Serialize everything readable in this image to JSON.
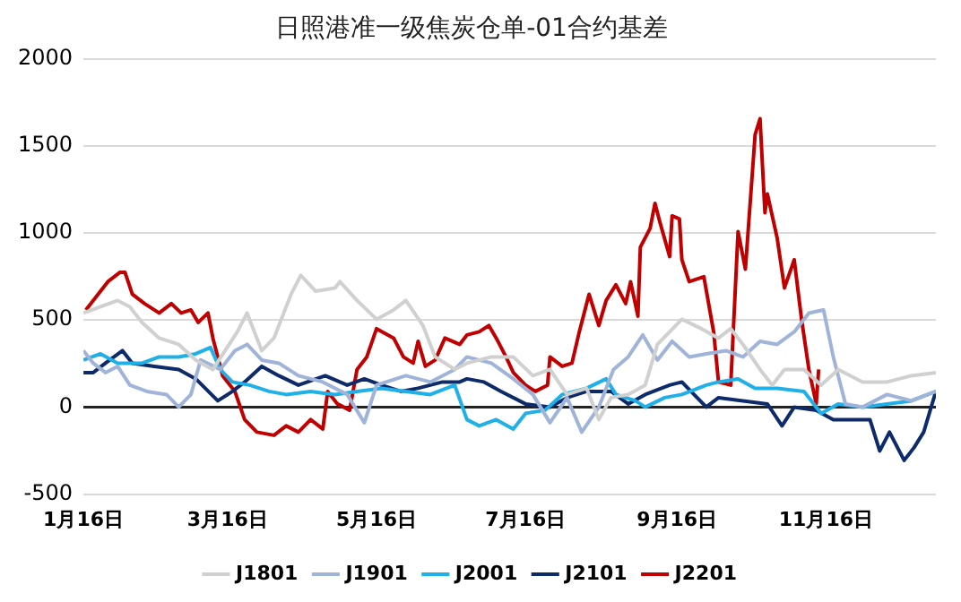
{
  "chart_data": {
    "type": "line",
    "title": "日照港准一级焦炭仓单-01合约基差",
    "xlim": [
      "--01-16",
      "--12-31"
    ],
    "xticks": [
      {
        "value": "--01-16",
        "label": "1月16日"
      },
      {
        "value": "--03-16",
        "label": "3月16日"
      },
      {
        "value": "--05-16",
        "label": "5月16日"
      },
      {
        "value": "--07-16",
        "label": "7月16日"
      },
      {
        "value": "--09-16",
        "label": "9月16日"
      },
      {
        "value": "--11-16",
        "label": "11月16日"
      }
    ],
    "ylim": [
      -500,
      2000
    ],
    "yticks": [
      -500,
      0,
      500,
      1000,
      1500,
      2000
    ],
    "grid": "y",
    "legend": "bottom",
    "marker": "none",
    "line_style": "solid",
    "series": [
      {
        "name": "J1801",
        "color": "#d0d0d0",
        "x": [
          "--01-16",
          "--01-23",
          "--01-30",
          "--02-04",
          "--02-09",
          "--02-16",
          "--02-24",
          "--03-03",
          "--03-10",
          "--03-15",
          "--03-20",
          "--03-24",
          "--03-30",
          "--04-04",
          "--04-11",
          "--04-15",
          "--04-21",
          "--04-29",
          "--05-01",
          "--05-08",
          "--05-16",
          "--05-23",
          "--05-28",
          "--06-04",
          "--06-09",
          "--06-17",
          "--06-22",
          "--07-02",
          "--07-11",
          "--07-19",
          "--07-26",
          "--08-02",
          "--08-10",
          "--08-15",
          "--08-20",
          "--08-27",
          "--09-03",
          "--09-08",
          "--09-13",
          "--09-18",
          "--09-26",
          "--10-03",
          "--10-08",
          "--10-13",
          "--10-20",
          "--10-25",
          "--10-30",
          "--11-07",
          "--11-14",
          "--11-21",
          "--12-01",
          "--12-11",
          "--12-21",
          "--12-31"
        ],
        "values": [
          540,
          576,
          612,
          576,
          486,
          396,
          360,
          270,
          216,
          324,
          432,
          540,
          324,
          396,
          648,
          756,
          666,
          684,
          720,
          612,
          504,
          558,
          612,
          468,
          288,
          216,
          252,
          288,
          288,
          180,
          216,
          72,
          108,
          -72,
          54,
          72,
          126,
          360,
          432,
          504,
          450,
          396,
          450,
          360,
          216,
          126,
          216,
          216,
          126,
          216,
          144,
          144,
          180,
          198
        ]
      },
      {
        "name": "J1901",
        "color": "#9fb4d8",
        "x": [
          "--01-16",
          "--01-20",
          "--01-25",
          "--01-30",
          "--02-04",
          "--02-11",
          "--02-19",
          "--02-24",
          "--03-01",
          "--03-05",
          "--03-13",
          "--03-19",
          "--03-24",
          "--03-30",
          "--04-06",
          "--04-14",
          "--04-24",
          "--05-04",
          "--05-11",
          "--05-16",
          "--05-28",
          "--06-07",
          "--06-17",
          "--06-22",
          "--07-02",
          "--07-11",
          "--07-19",
          "--07-26",
          "--08-02",
          "--08-08",
          "--08-15",
          "--08-21",
          "--08-27",
          "--09-02",
          "--09-08",
          "--09-14",
          "--09-21",
          "--09-28",
          "--10-06",
          "--10-13",
          "--10-20",
          "--10-27",
          "--11-03",
          "--11-09",
          "--11-15",
          "--11-19",
          "--11-24",
          "--12-01",
          "--12-11",
          "--12-21",
          "--12-31"
        ],
        "values": [
          324,
          252,
          198,
          234,
          126,
          90,
          72,
          0,
          72,
          270,
          216,
          324,
          360,
          270,
          252,
          180,
          144,
          72,
          -90,
          126,
          180,
          144,
          216,
          288,
          252,
          162,
          72,
          -90,
          54,
          -144,
          0,
          216,
          288,
          414,
          270,
          378,
          288,
          306,
          324,
          288,
          378,
          360,
          432,
          540,
          558,
          288,
          18,
          0,
          72,
          36,
          90
        ]
      },
      {
        "name": "J2001",
        "color": "#1fb0e8",
        "x": [
          "--01-16",
          "--01-23",
          "--01-30",
          "--02-09",
          "--02-16",
          "--02-24",
          "--03-03",
          "--03-09",
          "--03-13",
          "--03-18",
          "--03-25",
          "--04-02",
          "--04-09",
          "--04-19",
          "--04-29",
          "--05-08",
          "--05-18",
          "--05-28",
          "--06-07",
          "--06-17",
          "--06-22",
          "--06-27",
          "--07-04",
          "--07-11",
          "--07-16",
          "--07-24",
          "--07-31",
          "--08-10",
          "--08-18",
          "--08-22",
          "--08-30",
          "--09-03",
          "--09-11",
          "--09-18",
          "--09-28",
          "--10-03",
          "--10-11",
          "--10-18",
          "--10-27",
          "--11-07",
          "--11-14",
          "--11-21",
          "--12-01",
          "--12-11",
          "--12-21",
          "--12-31"
        ],
        "values": [
          270,
          306,
          252,
          252,
          288,
          288,
          306,
          342,
          216,
          144,
          126,
          90,
          72,
          90,
          72,
          90,
          108,
          90,
          72,
          126,
          -72,
          -108,
          -72,
          -126,
          -36,
          -18,
          72,
          108,
          162,
          72,
          36,
          0,
          54,
          72,
          126,
          144,
          162,
          108,
          108,
          90,
          -36,
          18,
          0,
          18,
          36,
          90
        ]
      },
      {
        "name": "J2101",
        "color": "#0d2a6b",
        "x": [
          "--01-16",
          "--01-20",
          "--01-25",
          "--02-01",
          "--02-05",
          "--02-14",
          "--02-24",
          "--03-03",
          "--03-12",
          "--03-18",
          "--03-23",
          "--03-30",
          "--04-06",
          "--04-14",
          "--04-25",
          "--05-04",
          "--05-11",
          "--05-18",
          "--05-26",
          "--06-02",
          "--06-12",
          "--06-19",
          "--06-22",
          "--06-29",
          "--07-06",
          "--07-16",
          "--07-26",
          "--08-02",
          "--08-10",
          "--08-20",
          "--08-27",
          "--09-03",
          "--09-13",
          "--09-18",
          "--09-28",
          "--10-03",
          "--10-13",
          "--10-23",
          "--10-29",
          "--11-03",
          "--11-12",
          "--11-19",
          "--11-26",
          "--12-04",
          "--12-08",
          "--12-12",
          "--12-18",
          "--12-22",
          "--12-26",
          "--12-31"
        ],
        "values": [
          198,
          198,
          252,
          324,
          252,
          234,
          216,
          162,
          36,
          90,
          144,
          234,
          180,
          126,
          180,
          126,
          162,
          126,
          90,
          108,
          144,
          144,
          162,
          144,
          90,
          18,
          0,
          54,
          90,
          90,
          18,
          72,
          126,
          144,
          0,
          54,
          36,
          18,
          -108,
          0,
          -18,
          -72,
          -72,
          -72,
          -252,
          -144,
          -306,
          -234,
          -144,
          90
        ]
      },
      {
        "name": "J2201",
        "color": "#c00000",
        "x": [
          "--01-17",
          "--01-20",
          "--01-26",
          "--01-31",
          "--02-02",
          "--02-05",
          "--02-10",
          "--02-16",
          "--02-21",
          "--02-25",
          "--03-01",
          "--03-04",
          "--03-08",
          "--03-10",
          "--03-14",
          "--03-19",
          "--03-23",
          "--03-28",
          "--04-04",
          "--04-09",
          "--04-14",
          "--04-19",
          "--04-24",
          "--04-26",
          "--04-30",
          "--05-05",
          "--05-08",
          "--05-12",
          "--05-16",
          "--05-23",
          "--05-27",
          "--05-31",
          "--06-02",
          "--06-05",
          "--06-09",
          "--06-13",
          "--06-19",
          "--06-22",
          "--06-27",
          "--07-01",
          "--07-04",
          "--07-08",
          "--07-11",
          "--07-16",
          "--07-20",
          "--07-25",
          "--07-26",
          "--07-31",
          "--08-04",
          "--08-07",
          "--08-11",
          "--08-15",
          "--08-18",
          "--08-22",
          "--08-26",
          "--08-28",
          "--08-31",
          "--09-01",
          "--09-05",
          "--09-07",
          "--09-09",
          "--09-13",
          "--09-14",
          "--09-17",
          "--09-18",
          "--09-21",
          "--09-27",
          "--10-01",
          "--10-03",
          "--10-08",
          "--10-11",
          "--10-14",
          "--10-18",
          "--10-20",
          "--10-22",
          "--10-23",
          "--10-27",
          "--10-30",
          "--11-03",
          "--11-06",
          "--11-09",
          "--11-12",
          "--11-13"
        ],
        "values": [
          558,
          612,
          720,
          774,
          774,
          648,
          594,
          540,
          594,
          540,
          558,
          486,
          540,
          396,
          180,
          90,
          -72,
          -144,
          -162,
          -108,
          -144,
          -72,
          -126,
          90,
          18,
          -18,
          216,
          288,
          450,
          396,
          288,
          252,
          378,
          234,
          270,
          396,
          360,
          414,
          432,
          468,
          396,
          288,
          198,
          126,
          90,
          126,
          288,
          234,
          252,
          432,
          648,
          468,
          612,
          702,
          594,
          720,
          522,
          918,
          1026,
          1170,
          1062,
          864,
          1098,
          1080,
          846,
          720,
          749,
          432,
          144,
          126,
          1008,
          792,
          1566,
          1656,
          1116,
          1224,
          972,
          684,
          846,
          504,
          216,
          18,
          216
        ]
      }
    ]
  }
}
